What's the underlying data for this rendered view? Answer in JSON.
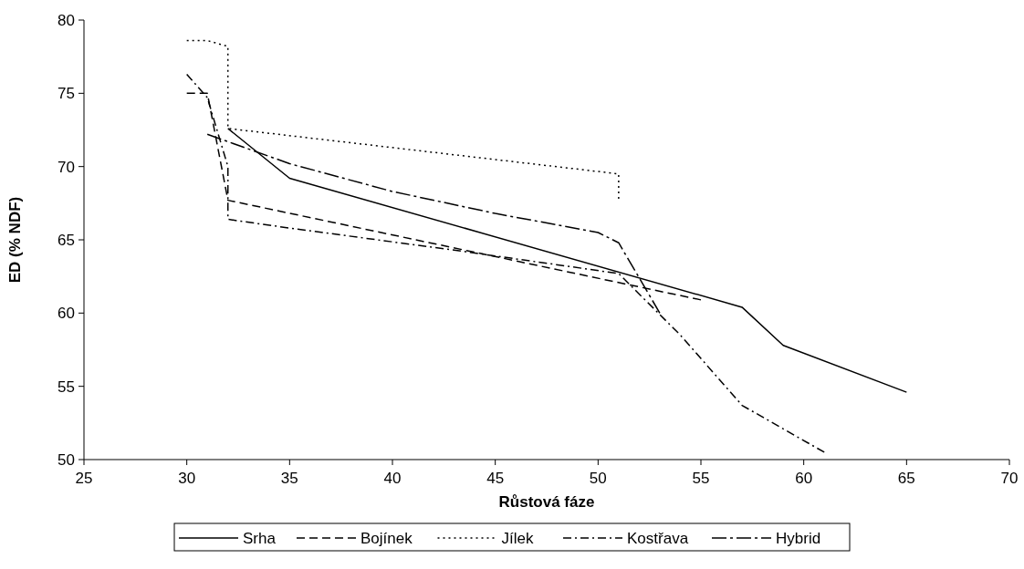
{
  "chart_data": {
    "type": "line",
    "xlabel": "Růstová fáze",
    "ylabel": "ED (% NDF)",
    "xlim": [
      25,
      70
    ],
    "xticks": [
      25,
      30,
      35,
      40,
      45,
      50,
      55,
      60,
      65,
      70
    ],
    "ylim": [
      50,
      80
    ],
    "yticks": [
      50,
      55,
      60,
      65,
      70,
      75,
      80
    ],
    "grid": false,
    "legend": "bottom",
    "marker": "none",
    "series": [
      {
        "name": "Srha",
        "color": "#000000",
        "line_style": "solid",
        "x": [
          32,
          35,
          57,
          59,
          65
        ],
        "values": [
          72.6,
          69.2,
          60.4,
          57.8,
          54.6
        ]
      },
      {
        "name": "Bojínek",
        "color": "#000000",
        "line_style": "dashed",
        "x": [
          30,
          31,
          32,
          55
        ],
        "values": [
          75.0,
          75.0,
          67.7,
          60.9
        ]
      },
      {
        "name": "Jílek",
        "color": "#000000",
        "line_style": "dotted",
        "x": [
          30,
          31,
          32,
          32,
          51,
          51
        ],
        "values": [
          78.6,
          78.6,
          78.2,
          72.6,
          69.5,
          67.8
        ]
      },
      {
        "name": "Kostřava",
        "color": "#000000",
        "line_style": "dashdot",
        "x": [
          30,
          31,
          32,
          32,
          35,
          43,
          51,
          54,
          57,
          61
        ],
        "values": [
          76.3,
          74.7,
          70.0,
          66.4,
          65.8,
          64.3,
          62.7,
          58.5,
          53.7,
          50.5
        ]
      },
      {
        "name": "Hybrid",
        "color": "#000000",
        "line_style": "longdashdot",
        "x": [
          31,
          35,
          40,
          45,
          50,
          51,
          53
        ],
        "values": [
          72.2,
          70.2,
          68.3,
          66.8,
          65.5,
          64.8,
          60.0
        ]
      }
    ]
  }
}
